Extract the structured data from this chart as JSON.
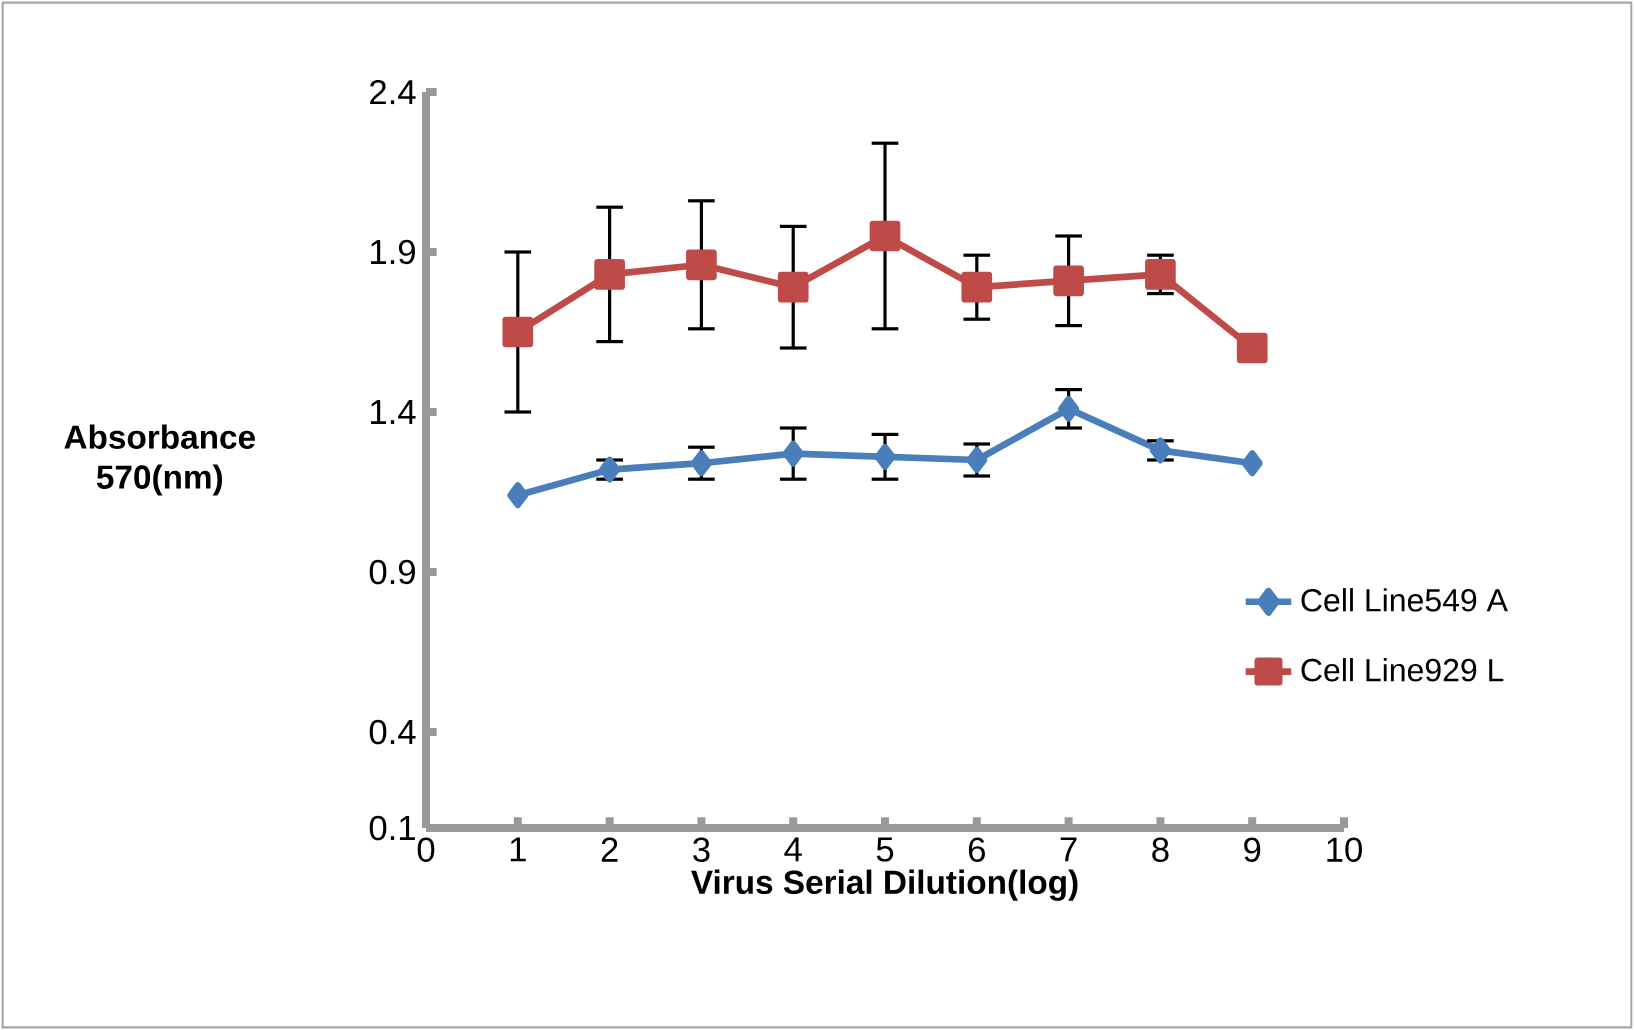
{
  "chart_data": {
    "type": "line",
    "xlabel": "Virus  Serial Dilution(log)",
    "ylabel": "Absorbance 570(nm)",
    "x": [
      1,
      2,
      3,
      4,
      5,
      6,
      7,
      8,
      9
    ],
    "series": [
      {
        "name": "Cell Line549 A",
        "color": "#4a7ebb",
        "marker": "diamond",
        "values": [
          1.14,
          1.22,
          1.24,
          1.27,
          1.26,
          1.25,
          1.41,
          1.28,
          1.24
        ],
        "errors": [
          null,
          0.03,
          0.05,
          0.08,
          0.07,
          0.05,
          0.06,
          0.03,
          null
        ]
      },
      {
        "name": "Cell Line929 L",
        "color": "#be4b48",
        "marker": "square",
        "values": [
          1.65,
          1.83,
          1.86,
          1.79,
          1.95,
          1.79,
          1.81,
          1.83,
          1.6
        ],
        "errors": [
          0.25,
          0.21,
          0.2,
          0.19,
          0.29,
          0.1,
          0.14,
          0.06,
          null
        ]
      }
    ],
    "xlim": [
      0,
      10
    ],
    "xticks": [
      0,
      1,
      2,
      3,
      4,
      5,
      6,
      7,
      8,
      9,
      10
    ],
    "ylim": [
      0.1,
      2.4
    ],
    "yticks": [
      0.1,
      0.4,
      0.9,
      1.4,
      1.9,
      2.4
    ],
    "grid": false,
    "legend": "right",
    "line_style": "solid"
  }
}
